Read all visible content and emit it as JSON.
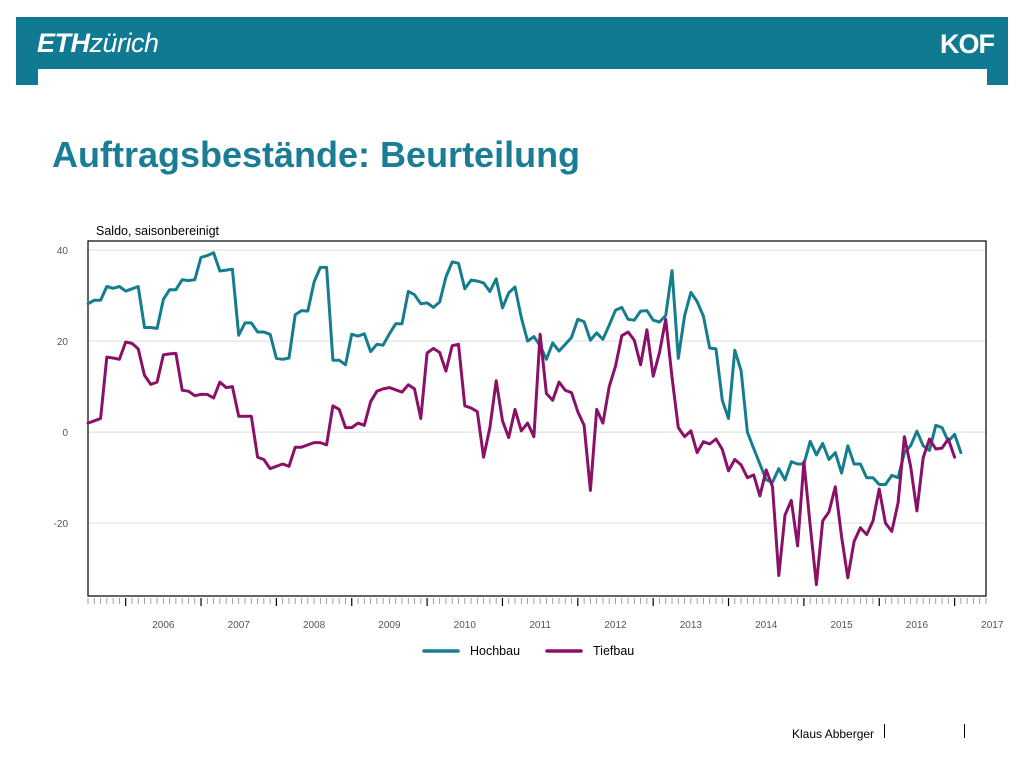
{
  "header": {
    "eth_logo_bold": "ETH",
    "eth_logo_light": "zürich",
    "kof_logo": "KOF"
  },
  "slide": {
    "title": "Auftragsbestände: Beurteilung"
  },
  "footer": {
    "author": "Klaus Abberger"
  },
  "colors": {
    "brand": "#0f7a92",
    "title": "#1a7d95",
    "hochbau": "#167d8f",
    "tiefbau": "#8a1167"
  },
  "chart_data": {
    "type": "line",
    "ylabel": "Saldo, saisonbereinigt",
    "xlabel": "",
    "x_start": "2005-07",
    "x_end": "2017-06",
    "frequency": "monthly",
    "ylim": [
      -36,
      42
    ],
    "y_ticks": [
      40,
      20,
      0,
      -20
    ],
    "x_tick_labels": [
      "2006",
      "2007",
      "2008",
      "2009",
      "2010",
      "2011",
      "2012",
      "2013",
      "2014",
      "2015",
      "2016",
      "2017"
    ],
    "grid": true,
    "legend_position": "bottom",
    "series": [
      {
        "name": "Hochbau",
        "start": "2005-07",
        "values": [
          28.2,
          29,
          29,
          32,
          31.6,
          32,
          31,
          31.5,
          32,
          23,
          23,
          22.8,
          29.2,
          31.3,
          31.3,
          33.5,
          33.3,
          33.5,
          38.4,
          38.8,
          39.4,
          35.4,
          35.6,
          35.8,
          21.3,
          24,
          24,
          22,
          22,
          21.5,
          16.2,
          16,
          16.3,
          25.8,
          26.7,
          26.6,
          33,
          36.2,
          36.2,
          15.8,
          15.8,
          14.8,
          21.5,
          21.1,
          21.6,
          17.7,
          19.3,
          19.1,
          21.6,
          23.8,
          23.8,
          30.9,
          30.2,
          28.2,
          28.4,
          27.4,
          28.6,
          34.1,
          37.4,
          37.1,
          31.5,
          33.4,
          33.2,
          32.8,
          30.9,
          33.7,
          27.3,
          30.6,
          31.9,
          25.2,
          20,
          21,
          19,
          16,
          19.6,
          17.8,
          19.3,
          20.8,
          24.8,
          24.3,
          20.2,
          21.8,
          20.4,
          23.5,
          26.8,
          27.4,
          24.8,
          24.6,
          26.6,
          26.7,
          24.6,
          24.2,
          25.6,
          35.5,
          16.2,
          25.6,
          30.7,
          28.7,
          25.5,
          18.5,
          18.3,
          7,
          3,
          18,
          13.5,
          0,
          -3.6,
          -7,
          -10.5,
          -11,
          -8,
          -10.5,
          -6.5,
          -7,
          -7,
          -2,
          -5,
          -2.5,
          -6,
          -4.5,
          -9,
          -3,
          -7,
          -7,
          -10,
          -10,
          -11.5,
          -11.5,
          -9.5,
          -10,
          -4.5,
          -3,
          0.2,
          -3,
          -4,
          1.5,
          1,
          -2,
          -0.5,
          -4.5
        ]
      },
      {
        "name": "Tiefbau",
        "start": "2005-07",
        "values": [
          2,
          2.5,
          3,
          16.5,
          16.3,
          16,
          19.8,
          19.5,
          18.3,
          12.5,
          10.5,
          11,
          17,
          17.2,
          17.3,
          9.2,
          9,
          8,
          8.3,
          8.3,
          7.5,
          11,
          9.8,
          10,
          3.5,
          3.5,
          3.5,
          -5.5,
          -6,
          -8,
          -7.5,
          -7,
          -7.5,
          -3.3,
          -3.3,
          -2.8,
          -2.3,
          -2.3,
          -2.8,
          5.8,
          5,
          1,
          1,
          2,
          1.5,
          6.7,
          9,
          9.5,
          9.8,
          9.3,
          8.8,
          10.4,
          9.5,
          3,
          17.4,
          18.4,
          17.5,
          13.4,
          19,
          19.3,
          5.8,
          5.3,
          4.5,
          -5.5,
          1,
          11.3,
          2.5,
          -1.2,
          5,
          0.3,
          2,
          -1,
          21.5,
          8.5,
          7,
          11,
          9.2,
          8.7,
          4.5,
          1.5,
          -12.8,
          5,
          2,
          10,
          14.5,
          21.2,
          22,
          20.2,
          14.8,
          22.5,
          12.3,
          17.5,
          24.8,
          12.1,
          1,
          -1,
          0.3,
          -4.5,
          -2.1,
          -2.6,
          -1.5,
          -3.8,
          -8.5,
          -6,
          -7.2,
          -10,
          -9.4,
          -14,
          -8.3,
          -12,
          -31.5,
          -18.2,
          -15,
          -25,
          -6.5,
          -20.5,
          -33.5,
          -19.5,
          -17.5,
          -12,
          -23,
          -32,
          -24,
          -21,
          -22.5,
          -19.5,
          -12.5,
          -20,
          -21.8,
          -15.5,
          -1,
          -7.5,
          -17.3,
          -5.6,
          -1.5,
          -3.7,
          -3.5,
          -1.5,
          -5.5
        ]
      }
    ]
  }
}
